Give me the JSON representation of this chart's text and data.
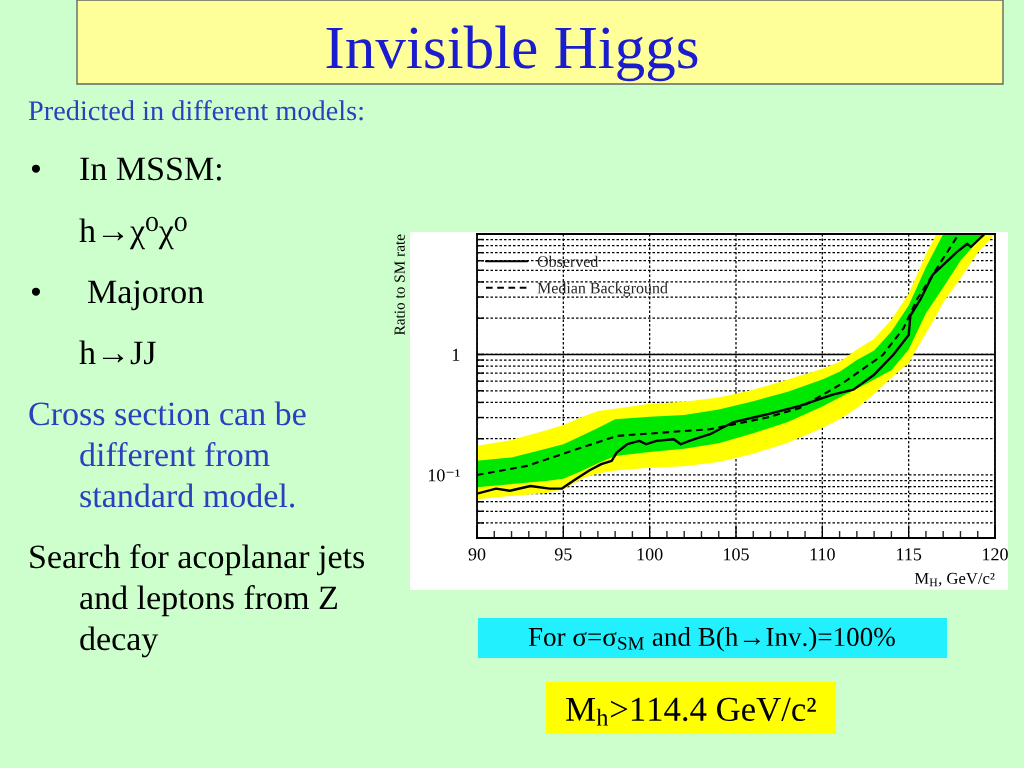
{
  "chart_data": {
    "type": "line",
    "title": "Invisible Higgs",
    "subtitle": "Predicted in different models:",
    "xlabel": "M$_{H}$, GeV/c²",
    "ylabel": "Ratio to SM rate",
    "annotations": [
      "•",
      "In MSSM:",
      "h→χ⁰χ⁰",
      "•",
      "Majoron",
      "h→JJ",
      "Cross section can be\ndifferent from\nstandard model.",
      "Search for acoplanar jets\nand leptons from Z\ndecay",
      "For σ=σ$_{SM}$ and B(h→Inv.)=100%",
      "M$_{h}$>114.4 GeV/c²"
    ],
    "log": "y",
    "xlim": [
      90,
      120
    ],
    "ylim": [
      0.03,
      10
    ],
    "xticks": [
      90,
      95,
      100,
      105,
      110,
      115,
      120
    ],
    "yticks": [
      {
        "value": 0.04,
        "label": null
      },
      {
        "value": 0.05,
        "label": null
      },
      {
        "value": 0.06,
        "label": null
      },
      {
        "value": 0.07,
        "label": null
      },
      {
        "value": 0.08,
        "label": null
      },
      {
        "value": 0.09,
        "label": null
      },
      {
        "value": 0.1,
        "label": "10⁻¹"
      },
      {
        "value": 0.2,
        "label": null
      },
      {
        "value": 0.3,
        "label": null
      },
      {
        "value": 0.4,
        "label": null
      },
      {
        "value": 0.5,
        "label": null
      },
      {
        "value": 0.6,
        "label": null
      },
      {
        "value": 0.7,
        "label": null
      },
      {
        "value": 0.8,
        "label": null
      },
      {
        "value": 0.9,
        "label": null
      },
      1,
      {
        "value": 2,
        "label": null
      },
      {
        "value": 3,
        "label": null
      },
      {
        "value": 4,
        "label": null
      },
      {
        "value": 5,
        "label": null
      },
      {
        "value": 6,
        "label": null
      },
      {
        "value": 7,
        "label": null
      },
      {
        "value": 8,
        "label": null
      },
      {
        "value": 9,
        "label": null
      }
    ],
    "grid": true,
    "legend": "top left",
    "ref_lines": [
      {
        "axis": "y",
        "value": 1,
        "color": "#000000",
        "line_style": "solid"
      }
    ],
    "series": [
      {
        "color": "#ffff00",
        "x": [
          90,
          92,
          94,
          95,
          96,
          97,
          98,
          100,
          102,
          104,
          106,
          108,
          110,
          111,
          112,
          113,
          114,
          115,
          116,
          116.6,
          117,
          118,
          119,
          120
        ],
        "values": [
          null,
          null,
          null,
          null,
          null,
          null,
          null,
          null,
          null,
          null,
          null,
          null,
          null,
          null,
          null,
          null,
          null,
          null,
          null,
          null,
          null,
          null,
          null,
          null
        ],
        "lower": [
          0.063,
          0.067,
          0.071,
          0.076,
          0.092,
          0.103,
          0.109,
          0.115,
          0.118,
          0.128,
          0.15,
          0.185,
          0.245,
          0.29,
          0.36,
          0.47,
          0.64,
          0.85,
          1.5,
          2.1,
          2.7,
          4.3,
          7.0,
          10
        ],
        "upper": [
          0.175,
          0.195,
          0.235,
          0.26,
          0.3,
          0.34,
          0.355,
          0.39,
          0.405,
          0.44,
          0.51,
          0.62,
          0.76,
          0.87,
          1.1,
          1.35,
          1.95,
          3.2,
          6.8,
          10,
          10,
          10,
          10,
          10
        ]
      },
      {
        "color": "#00e800",
        "x": [
          90,
          92,
          94,
          95,
          96,
          97,
          98,
          100,
          102,
          104,
          106,
          108,
          110,
          111,
          112,
          113,
          114,
          115,
          116,
          117,
          118,
          119,
          119.4
        ],
        "values": [
          null,
          null,
          null,
          null,
          null,
          null,
          null,
          null,
          null,
          null,
          null,
          null,
          null,
          null,
          null,
          null,
          null,
          null,
          null,
          null,
          null,
          null,
          null
        ],
        "lower": [
          0.079,
          0.084,
          0.089,
          0.093,
          0.107,
          0.125,
          0.144,
          0.155,
          0.165,
          0.183,
          0.222,
          0.275,
          0.37,
          0.44,
          0.52,
          0.62,
          0.74,
          1.1,
          2.2,
          3.6,
          6.0,
          8.7,
          10
        ],
        "upper": [
          0.131,
          0.14,
          0.165,
          0.18,
          0.21,
          0.245,
          0.29,
          0.305,
          0.315,
          0.35,
          0.41,
          0.49,
          0.62,
          0.72,
          0.9,
          1.08,
          1.55,
          2.55,
          5.3,
          10,
          10,
          10,
          10
        ]
      },
      {
        "name": "Observed",
        "color": "#000000",
        "line_style": "solid",
        "x": [
          90,
          91.1,
          91.9,
          93.1,
          94.2,
          94.9,
          95.6,
          96.5,
          97.2,
          97.8,
          98.1,
          98.7,
          99.4,
          99.8,
          100.4,
          101.4,
          101.8,
          102.3,
          102.9,
          103.5,
          104.8,
          106.8,
          108.7,
          110.6,
          111.8,
          113.0,
          114.1,
          115.0,
          115.1,
          115.7,
          116.4,
          117.8,
          118.4,
          118.6,
          119.4
        ],
        "values": [
          0.07,
          0.077,
          0.074,
          0.081,
          0.077,
          0.077,
          0.09,
          0.109,
          0.123,
          0.131,
          0.154,
          0.18,
          0.192,
          0.18,
          0.192,
          0.198,
          0.18,
          0.192,
          0.205,
          0.218,
          0.273,
          0.319,
          0.374,
          0.465,
          0.511,
          0.68,
          0.99,
          1.45,
          2.1,
          2.9,
          4.6,
          7.1,
          8.3,
          7.8,
          10
        ]
      },
      {
        "name": "Median Background",
        "color": "#000000",
        "line_style": "dashed",
        "x": [
          90,
          92.9,
          95.8,
          98.1,
          103.5,
          106.8,
          108.7,
          111.2,
          113.5,
          114.7,
          115.5,
          116.4,
          117.9
        ],
        "values": [
          0.1,
          0.119,
          0.164,
          0.211,
          0.24,
          0.3,
          0.36,
          0.58,
          0.99,
          1.65,
          2.9,
          4.6,
          10
        ]
      }
    ]
  }
}
